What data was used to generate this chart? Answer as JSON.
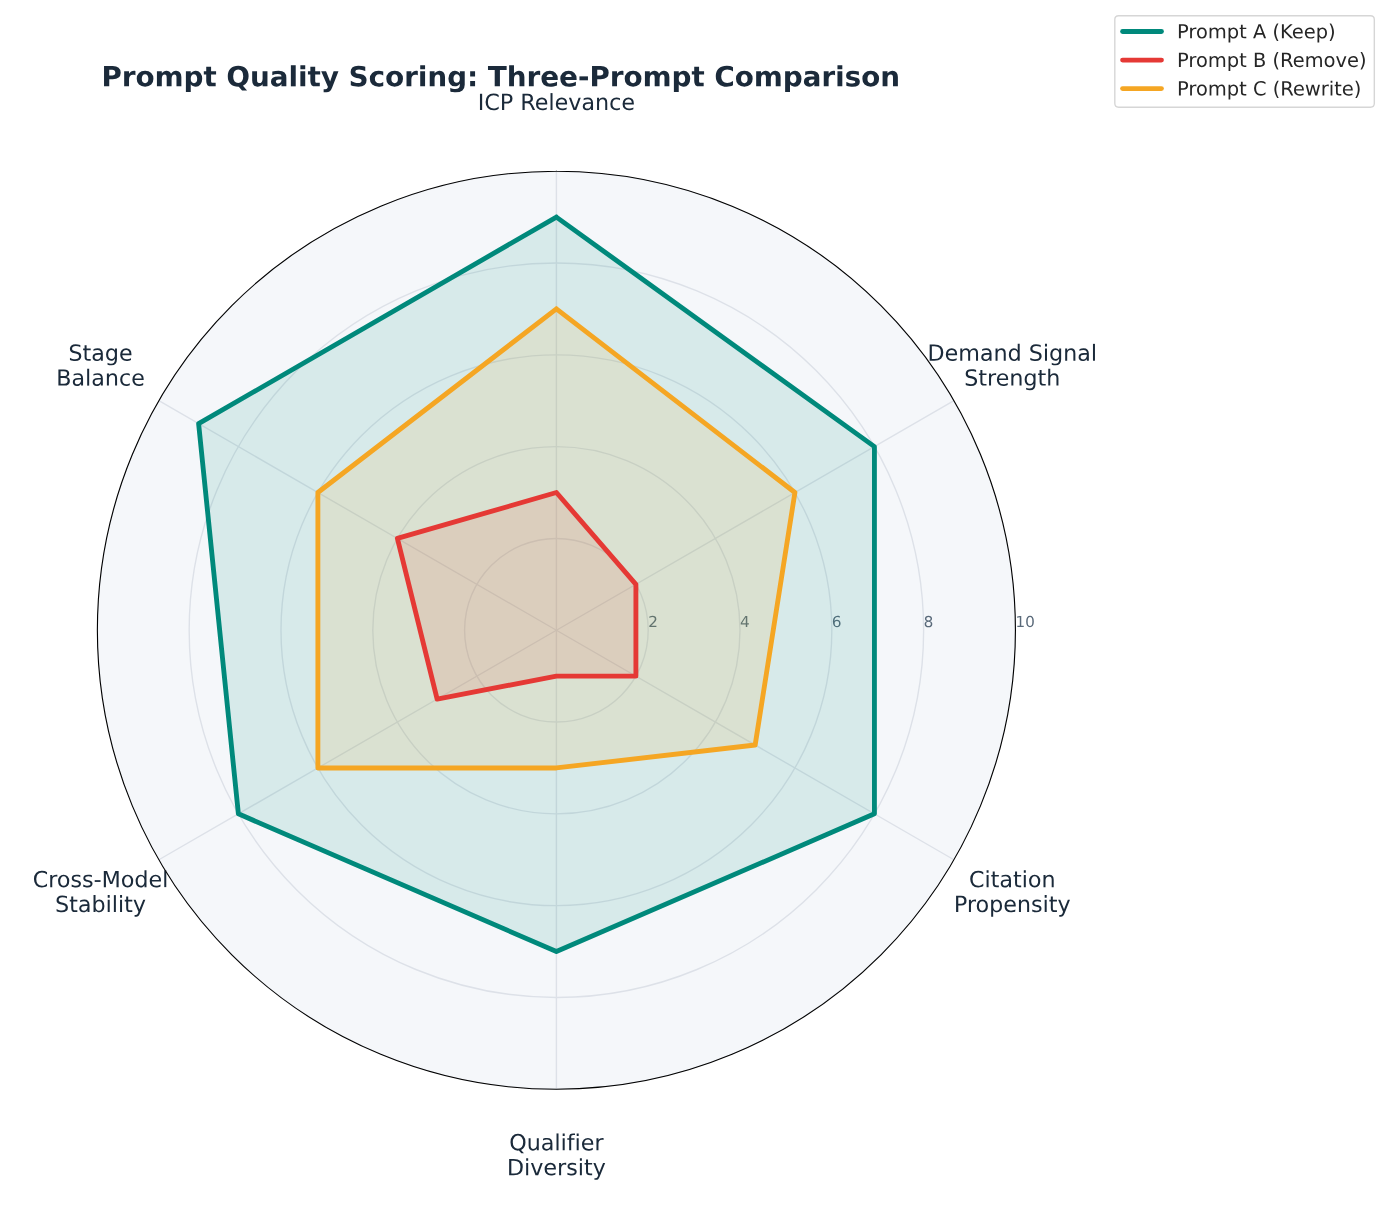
{
  "chart_data": {
    "type": "radar",
    "title": "Prompt Quality Scoring: Three-Prompt Comparison",
    "categories": [
      "ICP Relevance",
      "Demand Signal\nStrength",
      "Citation\nPropensity",
      "Qualifier\nDiversity",
      "Cross-Model\nStability",
      "Stage\nBalance"
    ],
    "series": [
      {
        "name": "Prompt A (Keep)",
        "color": "#00897b",
        "values": [
          9,
          8,
          8,
          7,
          8,
          9
        ]
      },
      {
        "name": "Prompt B (Remove)",
        "color": "#e53935",
        "values": [
          3,
          2,
          2,
          1,
          3,
          4
        ]
      },
      {
        "name": "Prompt C (Rewrite)",
        "color": "#f5a623",
        "values": [
          7,
          6,
          5,
          3,
          6,
          6
        ]
      }
    ],
    "ylim": [
      0,
      10
    ],
    "yticks": [
      2,
      4,
      6,
      8,
      10
    ],
    "grid": true,
    "legend": "top right",
    "marker": "none",
    "line_style": "solid"
  }
}
